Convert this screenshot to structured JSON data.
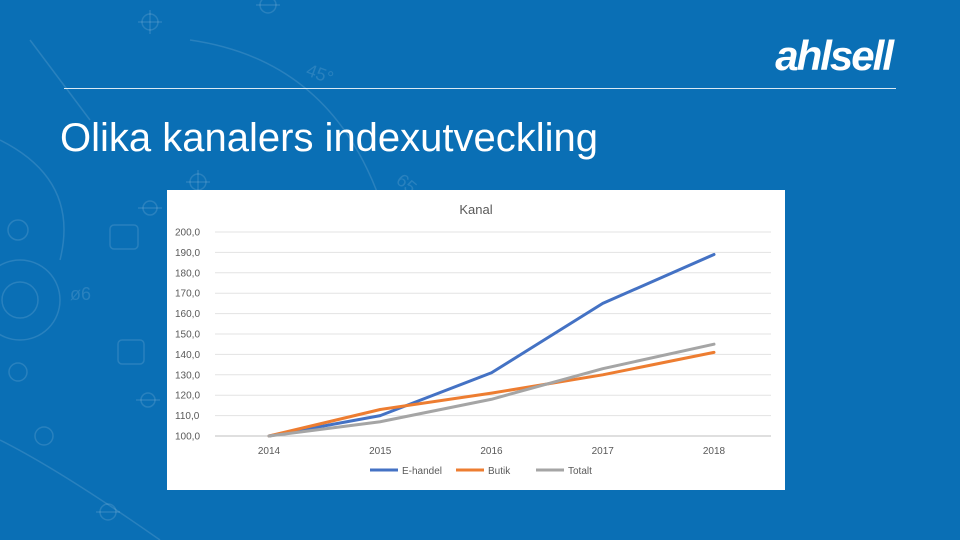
{
  "brand": {
    "logo_text": "ahlsell",
    "background": "#0a6fb5"
  },
  "slide": {
    "title": "Olika kanalers indexutveckling"
  },
  "chart_data": {
    "type": "line",
    "title": "Kanal",
    "x": [
      "2014",
      "2015",
      "2016",
      "2017",
      "2018"
    ],
    "ylim": [
      100,
      200
    ],
    "yticks": [
      "100,0",
      "110,0",
      "120,0",
      "130,0",
      "140,0",
      "150,0",
      "160,0",
      "170,0",
      "180,0",
      "190,0",
      "200,0"
    ],
    "grid": true,
    "legend_position": "bottom",
    "series": [
      {
        "name": "E-handel",
        "color": "#4472c4",
        "values": [
          100,
          110,
          131,
          165,
          189
        ]
      },
      {
        "name": "Butik",
        "color": "#ed7d31",
        "values": [
          100,
          113,
          121,
          130,
          141
        ]
      },
      {
        "name": "Totalt",
        "color": "#a5a5a5",
        "values": [
          100,
          107,
          118,
          133,
          145
        ]
      }
    ]
  }
}
